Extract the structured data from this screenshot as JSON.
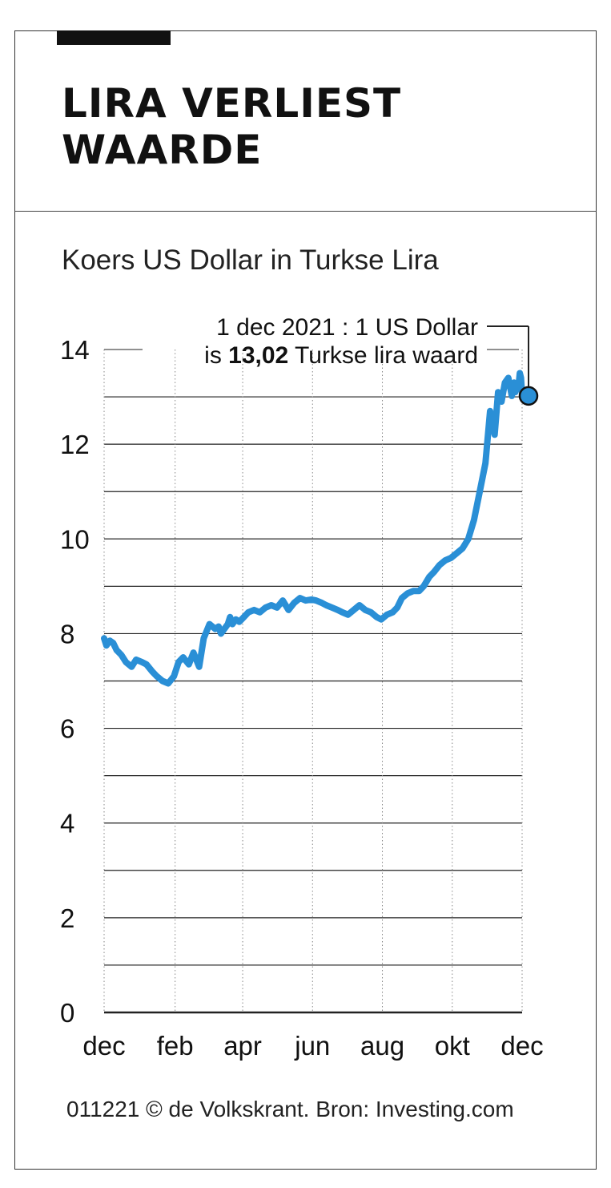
{
  "title_lines": [
    "LIRA VERLIEST",
    "WAARDE"
  ],
  "subtitle": "Koers US Dollar in Turkse Lira",
  "annotation": {
    "line1": "1 dec 2021 : 1 US Dollar",
    "line2_prefix": "is ",
    "line2_bold": "13,02",
    "line2_suffix": " Turkse lira waard"
  },
  "source": "011221 © de Volkskrant. Bron: Investing.com",
  "colors": {
    "line": "#2a8fd6",
    "marker": "#2a8fd6",
    "grid": "#222222",
    "text": "#111111"
  },
  "chart_data": {
    "type": "line",
    "title": "Koers US Dollar in Turkse Lira",
    "xlabel": "",
    "ylabel": "",
    "ylim": [
      0,
      14
    ],
    "xlim": [
      "2020-12-01",
      "2021-12-01"
    ],
    "y_ticks": [
      "0",
      "2",
      "4",
      "6",
      "8",
      "10",
      "12",
      "14"
    ],
    "y_tick_values": [
      0,
      2,
      4,
      6,
      8,
      10,
      12,
      14
    ],
    "x_tick_labels": [
      "dec",
      "feb",
      "apr",
      "jun",
      "aug",
      "okt",
      "dec"
    ],
    "x_tick_dates": [
      "2020-12-01",
      "2021-02-01",
      "2021-04-01",
      "2021-06-01",
      "2021-08-01",
      "2021-10-01",
      "2021-12-01"
    ],
    "grid": true,
    "series": [
      {
        "x": [
          "2020-12-01",
          "2020-12-03",
          "2020-12-06",
          "2020-12-09",
          "2020-12-12",
          "2020-12-16",
          "2020-12-20",
          "2020-12-25",
          "2020-12-29",
          "2021-01-03",
          "2021-01-07",
          "2021-01-12",
          "2021-01-16",
          "2021-01-21",
          "2021-01-26",
          "2021-01-31",
          "2021-02-04",
          "2021-02-08",
          "2021-02-13",
          "2021-02-17",
          "2021-02-22",
          "2021-02-26",
          "2021-03-03",
          "2021-03-08",
          "2021-03-11",
          "2021-03-13",
          "2021-03-16",
          "2021-03-19",
          "2021-03-21",
          "2021-03-23",
          "2021-03-26",
          "2021-03-29",
          "2021-04-02",
          "2021-04-06",
          "2021-04-11",
          "2021-04-16",
          "2021-04-21",
          "2021-04-26",
          "2021-05-01",
          "2021-05-06",
          "2021-05-11",
          "2021-05-16",
          "2021-05-21",
          "2021-05-26",
          "2021-05-31",
          "2021-06-04",
          "2021-06-09",
          "2021-06-13",
          "2021-06-18",
          "2021-06-23",
          "2021-06-27",
          "2021-07-02",
          "2021-07-07",
          "2021-07-12",
          "2021-07-17",
          "2021-07-22",
          "2021-07-27",
          "2021-07-31",
          "2021-08-05",
          "2021-08-10",
          "2021-08-14",
          "2021-08-18",
          "2021-08-23",
          "2021-08-28",
          "2021-09-02",
          "2021-09-06",
          "2021-09-11",
          "2021-09-15",
          "2021-09-20",
          "2021-09-25",
          "2021-09-30",
          "2021-10-05",
          "2021-10-10",
          "2021-10-15",
          "2021-10-20",
          "2021-10-25",
          "2021-10-30",
          "2021-11-03",
          "2021-11-07",
          "2021-11-10",
          "2021-11-13",
          "2021-11-16",
          "2021-11-19",
          "2021-11-22",
          "2021-11-23",
          "2021-11-24",
          "2021-11-25",
          "2021-11-26",
          "2021-11-28",
          "2021-11-29",
          "2021-11-30",
          "2021-12-01"
        ],
        "y": [
          7.9,
          7.75,
          7.85,
          7.8,
          7.65,
          7.55,
          7.4,
          7.3,
          7.45,
          7.4,
          7.35,
          7.2,
          7.1,
          7.0,
          6.95,
          7.1,
          7.4,
          7.5,
          7.35,
          7.6,
          7.3,
          7.9,
          8.2,
          8.1,
          8.15,
          8.0,
          8.1,
          8.2,
          8.35,
          8.2,
          8.3,
          8.25,
          8.35,
          8.45,
          8.5,
          8.45,
          8.55,
          8.6,
          8.55,
          8.7,
          8.5,
          8.65,
          8.75,
          8.7,
          8.72,
          8.7,
          8.65,
          8.6,
          8.55,
          8.5,
          8.45,
          8.4,
          8.5,
          8.6,
          8.5,
          8.45,
          8.35,
          8.3,
          8.4,
          8.45,
          8.55,
          8.75,
          8.85,
          8.9,
          8.9,
          9.0,
          9.2,
          9.3,
          9.45,
          9.55,
          9.6,
          9.7,
          9.8,
          10.0,
          10.4,
          11.0,
          11.6,
          12.7,
          12.2,
          13.1,
          12.9,
          13.3,
          13.4,
          13.02,
          13.2,
          13.3,
          13.1,
          13.2,
          13.25,
          13.5,
          13.4,
          13.02
        ]
      }
    ]
  }
}
